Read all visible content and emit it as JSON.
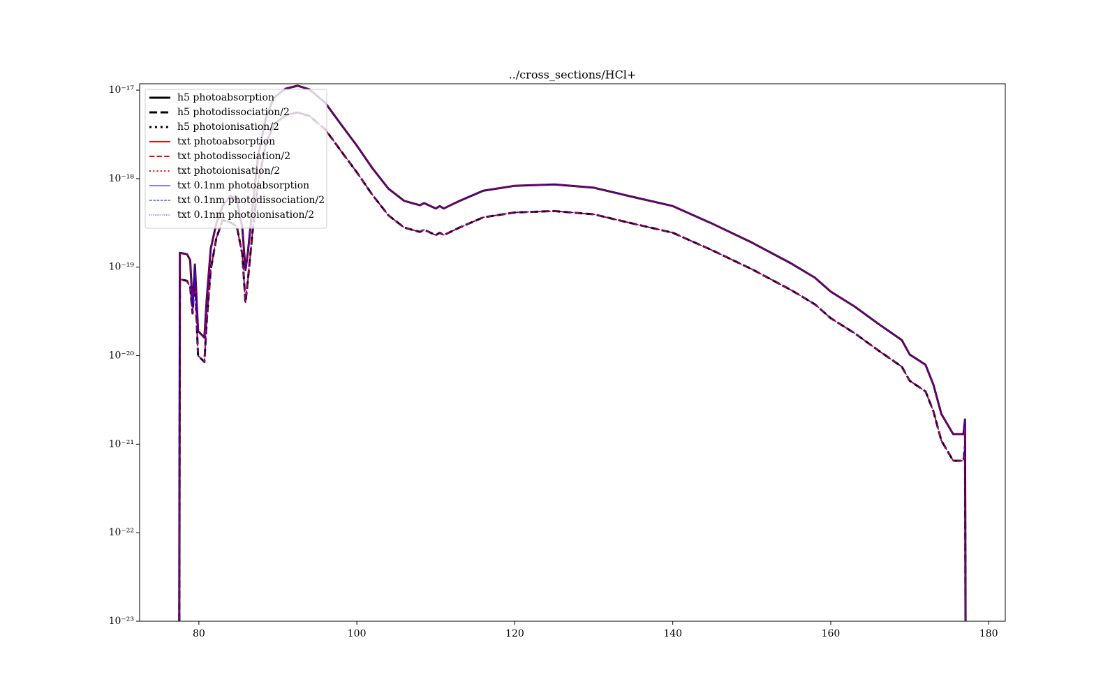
{
  "chart_data": {
    "type": "line",
    "title": "../cross_sections/HCl+",
    "yscale": "log",
    "legend": "upper left",
    "x": [
      77.5,
      77.6,
      78.5,
      78.9,
      79.2,
      79.5,
      79.9,
      80.7,
      81.0,
      81.5,
      82.2,
      83.0,
      84.0,
      84.8,
      85.5,
      85.9,
      86.2,
      86.8,
      87.5,
      88.5,
      89.5,
      91,
      92.5,
      94,
      96,
      98,
      100,
      102,
      104,
      106,
      108,
      108.5,
      110,
      110.5,
      111,
      113,
      116,
      120,
      125,
      130,
      135,
      140,
      145,
      150,
      155,
      158,
      160,
      163,
      166,
      169,
      170,
      172,
      173,
      174,
      175.5,
      176.8,
      177.0,
      177.1
    ],
    "xlim": [
      72.5,
      182.1
    ],
    "xticks": [
      80,
      100,
      120,
      140,
      160,
      180
    ],
    "ylim": [
      1e-23,
      1.18e-17
    ],
    "yticks": [
      {
        "value": 1e-23,
        "label": "10⁻²³"
      },
      {
        "value": 1e-22,
        "label": "10⁻²²"
      },
      {
        "value": 1e-21,
        "label": "10⁻²¹"
      },
      {
        "value": 1e-20,
        "label": "10⁻²⁰"
      },
      {
        "value": 1e-19,
        "label": "10⁻¹⁹"
      },
      {
        "value": 1e-18,
        "label": "10⁻¹⁸"
      },
      {
        "value": 1e-17,
        "label": "10⁻¹⁷"
      }
    ],
    "series": [
      {
        "name": "h5 photoabsorption",
        "color": "#000000",
        "linewidth": 3,
        "linestyle": "solid",
        "values": [
          1e-24,
          1.45e-19,
          1.4e-19,
          1.2e-19,
          3.6e-20,
          1.07e-19,
          1.9e-20,
          1.6e-20,
          4.4e-20,
          1.6e-19,
          3.1e-19,
          4.9e-19,
          6.4e-19,
          5.8e-19,
          2.8e-19,
          9.3e-20,
          1.45e-19,
          4.9e-19,
          1.8e-18,
          4.95e-18,
          8.2e-18,
          1.04e-17,
          1.12e-17,
          1.02e-17,
          7.2e-18,
          4.1e-18,
          2.36e-18,
          1.3e-18,
          7.7e-19,
          5.6e-19,
          5e-19,
          5.3e-19,
          4.6e-19,
          4.9e-19,
          4.6e-19,
          5.6e-19,
          7.3e-19,
          8.3e-19,
          8.6e-19,
          7.9e-19,
          6.2e-19,
          4.9e-19,
          3.1e-19,
          1.9e-19,
          1.1e-19,
          7.6e-20,
          5.3e-20,
          3.6e-20,
          2.3e-20,
          1.5e-20,
          1.03e-20,
          7.9e-21,
          4.7e-21,
          2.2e-21,
          1.3e-21,
          1.3e-21,
          1.9e-21,
          1e-24
        ]
      },
      {
        "name": "h5 photodissociation/2",
        "color": "#000000",
        "linewidth": 3,
        "linestyle": "dashed",
        "values": [
          1e-24,
          7.3e-20,
          7e-20,
          6e-20,
          3e-20,
          7.6e-20,
          1e-20,
          8.5e-21,
          2.5e-20,
          9.3e-20,
          2.1e-19,
          3.4e-19,
          3.2e-19,
          2.9e-19,
          1.4e-19,
          4e-20,
          7e-20,
          2.5e-19,
          9e-19,
          2.5e-18,
          4.1e-18,
          5.2e-18,
          5.6e-18,
          5.1e-18,
          3.6e-18,
          2.05e-18,
          1.18e-18,
          6.5e-19,
          3.85e-19,
          2.8e-19,
          2.5e-19,
          2.65e-19,
          2.3e-19,
          2.45e-19,
          2.3e-19,
          2.8e-19,
          3.65e-19,
          4.15e-19,
          4.3e-19,
          3.95e-19,
          3.1e-19,
          2.45e-19,
          1.55e-19,
          9.5e-20,
          5.5e-20,
          3.8e-20,
          2.65e-20,
          1.8e-20,
          1.15e-20,
          7.5e-21,
          5.2e-21,
          3.95e-21,
          2.35e-21,
          1.1e-21,
          6.5e-22,
          6.5e-22,
          9.5e-22,
          1e-24
        ]
      },
      {
        "name": "h5 photoionisation/2",
        "color": "#000000",
        "linewidth": 3,
        "linestyle": "dotted",
        "values": [
          null,
          null,
          null,
          null,
          null,
          null,
          null,
          null,
          null,
          null,
          null,
          null,
          null,
          null,
          null,
          null,
          null,
          null,
          null,
          2.5e-18,
          4.1e-18,
          5.2e-18,
          5.6e-18,
          5.1e-18,
          null,
          null,
          null,
          null,
          null,
          null,
          null,
          null,
          null,
          null,
          null,
          null,
          null,
          null,
          null,
          null,
          null,
          null,
          null,
          null,
          null,
          null,
          null,
          null,
          null,
          null,
          null,
          null,
          null,
          null,
          null,
          null,
          null,
          null
        ]
      },
      {
        "name": "txt photoabsorption",
        "color": "#ff0000",
        "linewidth": 2,
        "linestyle": "solid",
        "values": [
          1e-24,
          1.45e-19,
          1.4e-19,
          1.2e-19,
          3.6e-20,
          1.07e-19,
          1.9e-20,
          1.6e-20,
          4.4e-20,
          1.6e-19,
          3.1e-19,
          4.9e-19,
          6.4e-19,
          5.8e-19,
          2.8e-19,
          9.3e-20,
          1.45e-19,
          4.9e-19,
          1.8e-18,
          4.95e-18,
          8.2e-18,
          1.04e-17,
          1.12e-17,
          1.02e-17,
          7.2e-18,
          4.1e-18,
          2.36e-18,
          1.3e-18,
          7.7e-19,
          5.6e-19,
          5e-19,
          5.3e-19,
          4.6e-19,
          4.9e-19,
          4.6e-19,
          5.6e-19,
          7.3e-19,
          8.3e-19,
          8.6e-19,
          7.9e-19,
          6.2e-19,
          4.9e-19,
          3.1e-19,
          1.9e-19,
          1.1e-19,
          7.6e-20,
          5.3e-20,
          3.6e-20,
          2.3e-20,
          1.5e-20,
          1.03e-20,
          7.9e-21,
          4.7e-21,
          2.2e-21,
          1.3e-21,
          1.3e-21,
          1.9e-21,
          1e-24
        ]
      },
      {
        "name": "txt photodissociation/2",
        "color": "#ff0000",
        "linewidth": 2,
        "linestyle": "dashed",
        "values": [
          1e-24,
          7.3e-20,
          7e-20,
          6e-20,
          3e-20,
          7.6e-20,
          1e-20,
          8.5e-21,
          2.5e-20,
          9.3e-20,
          2.1e-19,
          3.4e-19,
          3.2e-19,
          2.9e-19,
          1.4e-19,
          4e-20,
          7e-20,
          2.5e-19,
          9e-19,
          2.5e-18,
          4.1e-18,
          5.2e-18,
          5.6e-18,
          5.1e-18,
          3.6e-18,
          2.05e-18,
          1.18e-18,
          6.5e-19,
          3.85e-19,
          2.8e-19,
          2.5e-19,
          2.65e-19,
          2.3e-19,
          2.45e-19,
          2.3e-19,
          2.8e-19,
          3.65e-19,
          4.15e-19,
          4.3e-19,
          3.95e-19,
          3.1e-19,
          2.45e-19,
          1.55e-19,
          9.5e-20,
          5.5e-20,
          3.8e-20,
          2.65e-20,
          1.8e-20,
          1.15e-20,
          7.5e-21,
          5.2e-21,
          3.95e-21,
          2.35e-21,
          1.1e-21,
          6.5e-22,
          6.5e-22,
          9.5e-22,
          1e-24
        ]
      },
      {
        "name": "txt photoionisation/2",
        "color": "#ff0000",
        "linewidth": 2,
        "linestyle": "dotted",
        "values": [
          null,
          null,
          null,
          null,
          null,
          null,
          null,
          null,
          null,
          null,
          null,
          null,
          null,
          null,
          null,
          null,
          null,
          null,
          null,
          2.5e-18,
          4.1e-18,
          5.2e-18,
          5.6e-18,
          5.1e-18,
          null,
          null,
          null,
          null,
          null,
          null,
          null,
          null,
          null,
          null,
          null,
          null,
          null,
          null,
          null,
          null,
          null,
          null,
          null,
          null,
          null,
          null,
          null,
          null,
          null,
          null,
          null,
          null,
          null,
          null,
          null,
          null,
          null,
          null
        ]
      },
      {
        "name": "txt 0.1nm photoabsorption",
        "color": "#0000ff",
        "linewidth": 1,
        "linestyle": "solid",
        "values": [
          1e-24,
          1.45e-19,
          1.4e-19,
          1.2e-19,
          3.6e-20,
          1.07e-19,
          1.9e-20,
          1.6e-20,
          4.4e-20,
          1.6e-19,
          3.1e-19,
          4.9e-19,
          6.4e-19,
          5.8e-19,
          2.8e-19,
          9.3e-20,
          1.45e-19,
          4.9e-19,
          1.8e-18,
          4.95e-18,
          8.2e-18,
          1.04e-17,
          1.12e-17,
          1.02e-17,
          7.2e-18,
          4.1e-18,
          2.36e-18,
          1.3e-18,
          7.7e-19,
          5.6e-19,
          5e-19,
          5.3e-19,
          4.6e-19,
          4.9e-19,
          4.6e-19,
          5.6e-19,
          7.3e-19,
          8.3e-19,
          8.6e-19,
          7.9e-19,
          6.2e-19,
          4.9e-19,
          3.1e-19,
          1.9e-19,
          1.1e-19,
          7.6e-20,
          5.3e-20,
          3.6e-20,
          2.3e-20,
          1.5e-20,
          1.03e-20,
          7.9e-21,
          4.7e-21,
          2.2e-21,
          1.3e-21,
          1.3e-21,
          1.9e-21,
          1e-24
        ]
      },
      {
        "name": "txt 0.1nm photodissociation/2",
        "color": "#0000ff",
        "linewidth": 1,
        "linestyle": "dashed",
        "values": [
          1e-24,
          7.3e-20,
          7e-20,
          6e-20,
          3e-20,
          7.6e-20,
          1e-20,
          8.5e-21,
          2.5e-20,
          9.3e-20,
          2.1e-19,
          3.4e-19,
          3.2e-19,
          2.9e-19,
          1.4e-19,
          4e-20,
          7e-20,
          2.5e-19,
          9e-19,
          2.5e-18,
          4.1e-18,
          5.2e-18,
          5.6e-18,
          5.1e-18,
          3.6e-18,
          2.05e-18,
          1.18e-18,
          6.5e-19,
          3.85e-19,
          2.8e-19,
          2.5e-19,
          2.65e-19,
          2.3e-19,
          2.45e-19,
          2.3e-19,
          2.8e-19,
          3.65e-19,
          4.15e-19,
          4.3e-19,
          3.95e-19,
          3.1e-19,
          2.45e-19,
          1.55e-19,
          9.5e-20,
          5.5e-20,
          3.8e-20,
          2.65e-20,
          1.8e-20,
          1.15e-20,
          7.5e-21,
          5.2e-21,
          3.95e-21,
          2.35e-21,
          1.1e-21,
          6.5e-22,
          6.5e-22,
          9.5e-22,
          1e-24
        ]
      },
      {
        "name": "txt 0.1nm photoionisation/2",
        "color": "#0000ff",
        "linewidth": 1,
        "linestyle": "dotted",
        "values": [
          null,
          null,
          null,
          null,
          null,
          null,
          null,
          null,
          null,
          null,
          null,
          null,
          null,
          null,
          null,
          null,
          null,
          null,
          null,
          2.5e-18,
          4.1e-18,
          5.2e-18,
          5.6e-18,
          5.1e-18,
          null,
          null,
          null,
          null,
          null,
          null,
          null,
          null,
          null,
          null,
          null,
          null,
          null,
          null,
          null,
          null,
          null,
          null,
          null,
          null,
          null,
          null,
          null,
          null,
          null,
          null,
          null,
          null,
          null,
          null,
          null,
          null,
          null,
          null
        ]
      }
    ]
  }
}
